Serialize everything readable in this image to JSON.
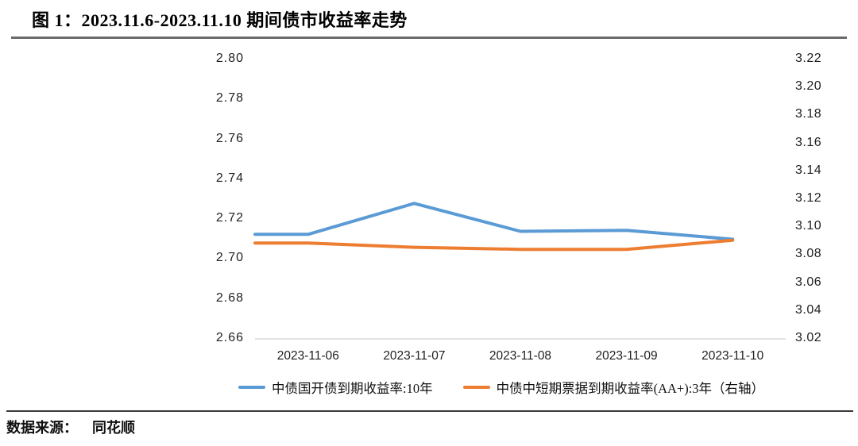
{
  "title": "图 1：2023.11.6-2023.11.10 期间债市收益率走势",
  "source": {
    "label": "数据来源：",
    "value": "同花顺"
  },
  "chart_data": {
    "type": "line",
    "title": "图 1：2023.11.6-2023.11.10 期间债市收益率走势",
    "categories": [
      "2023-11-06",
      "2023-11-07",
      "2023-11-08",
      "2023-11-09",
      "2023-11-10"
    ],
    "series": [
      {
        "name": "中债国开债到期收益率:10年",
        "axis": "left",
        "color": "#5B9BD5",
        "values": [
          2.712,
          2.7275,
          2.7135,
          2.714,
          2.7095
        ]
      },
      {
        "name": "中债中短期票据到期收益率(AA+):3年（右轴）",
        "axis": "right",
        "color": "#ED7D31",
        "values": [
          3.088,
          3.085,
          3.0835,
          3.0835,
          3.09
        ]
      }
    ],
    "left_axis": {
      "min": 2.66,
      "max": 2.8,
      "ticks": [
        "2.80",
        "2.78",
        "2.76",
        "2.74",
        "2.72",
        "2.70",
        "2.68",
        "2.66"
      ]
    },
    "right_axis": {
      "min": 3.02,
      "max": 3.22,
      "ticks": [
        "3.22",
        "3.20",
        "3.18",
        "3.16",
        "3.14",
        "3.12",
        "3.10",
        "3.08",
        "3.06",
        "3.04",
        "3.02"
      ]
    },
    "grid": false,
    "legend_position": "bottom",
    "axis_line_color": "#d9d9d9"
  }
}
